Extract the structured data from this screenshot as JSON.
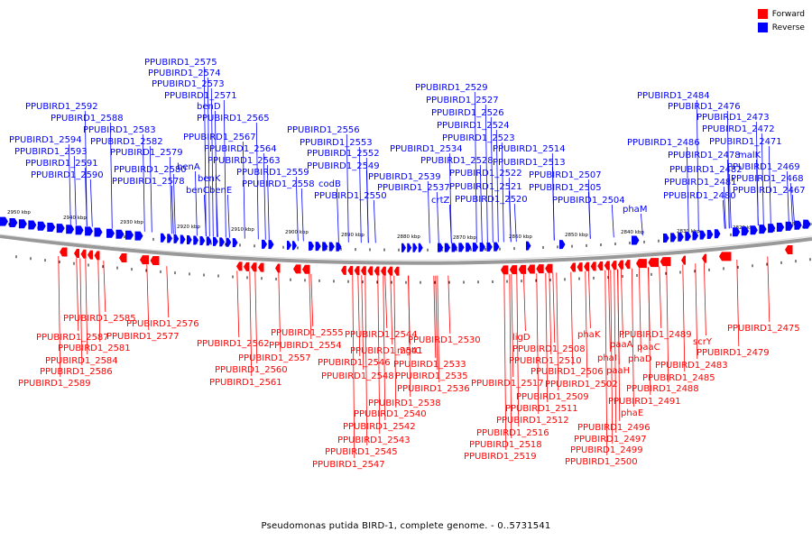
{
  "legend": {
    "items": [
      {
        "label": "Forward",
        "color": "#ff0000"
      },
      {
        "label": "Reverse",
        "color": "#0000ff"
      }
    ]
  },
  "caption": "Pseudomonas putida BIRD-1, complete genome. - 0..5731541",
  "colors": {
    "forward": "#ff0000",
    "reverse": "#0000ff",
    "backbone": "#999999"
  },
  "chart_data": {
    "type": "genome-map",
    "ticks": [
      "2950 kbp",
      "2940 kbp",
      "2930 kbp",
      "2920 kbp",
      "2910 kbp",
      "2900 kbp",
      "2890 kbp",
      "2880 kbp",
      "2870 kbp",
      "2860 kbp",
      "2850 kbp",
      "2840 kbp",
      "2830 kbp",
      "2820 kbp",
      "2810 kbp"
    ],
    "reverse_labels": [
      "PPUBIRD1_2592",
      "PPUBIRD1_2588",
      "PPUBIRD1_2594",
      "PPUBIRD1_2593",
      "PPUBIRD1_2591",
      "PPUBIRD1_2590",
      "PPUBIRD1_2583",
      "PPUBIRD1_2582",
      "PPUBIRD1_2579",
      "PPUBIRD1_2580",
      "PPUBIRD1_2578",
      "PPUBIRD1_2575",
      "PPUBIRD1_2574",
      "PPUBIRD1_2573",
      "PPUBIRD1_2571",
      "benD",
      "PPUBIRD1_2565",
      "PPUBIRD1_2567",
      "PPUBIRD1_2564",
      "PPUBIRD1_2563",
      "benA",
      "benK",
      "benC",
      "benE",
      "PPUBIRD1_2559",
      "PPUBIRD1_2558",
      "PPUBIRD1_2556",
      "PPUBIRD1_2553",
      "PPUBIRD1_2552",
      "PPUBIRD1_2549",
      "codB",
      "PPUBIRD1_2550",
      "PPUBIRD1_2529",
      "PPUBIRD1_2527",
      "PPUBIRD1_2526",
      "PPUBIRD1_2524",
      "PPUBIRD1_2523",
      "PPUBIRD1_2534",
      "PPUBIRD1_2514",
      "PPUBIRD1_2528",
      "PPUBIRD1_2513",
      "PPUBIRD1_2539",
      "PPUBIRD1_2522",
      "PPUBIRD1_2507",
      "PPUBIRD1_2537",
      "PPUBIRD1_2521",
      "PPUBIRD1_2505",
      "crtZ",
      "PPUBIRD1_2520",
      "PPUBIRD1_2504",
      "PPUBIRD1_2484",
      "PPUBIRD1_2476",
      "PPUBIRD1_2473",
      "PPUBIRD1_2472",
      "PPUBIRD1_2486",
      "PPUBIRD1_2471",
      "PPUBIRD1_2478",
      "malK",
      "PPUBIRD1_2482",
      "PPUBIRD1_2469",
      "PPUBIRD1_2481",
      "PPUBIRD1_2468",
      "PPUBIRD1_2480",
      "PPUBIRD1_2467",
      "phaM"
    ],
    "forward_labels": [
      "PPUBIRD1_2585",
      "PPUBIRD1_2576",
      "PPUBIRD1_2587",
      "PPUBIRD1_2577",
      "PPUBIRD1_2581",
      "PPUBIRD1_2584",
      "PPUBIRD1_2586",
      "PPUBIRD1_2589",
      "PPUBIRD1_2555",
      "PPUBIRD1_2562",
      "PPUBIRD1_2554",
      "PPUBIRD1_2557",
      "PPUBIRD1_2560",
      "PPUBIRD1_2561",
      "PPUBIRD1_2544",
      "PPUBIRD1_2541",
      "mgtC",
      "PPUBIRD1_2530",
      "PPUBIRD1_2546",
      "PPUBIRD1_2533",
      "PPUBIRD1_2548",
      "PPUBIRD1_2535",
      "PPUBIRD1_2536",
      "PPUBIRD1_2538",
      "PPUBIRD1_2540",
      "PPUBIRD1_2542",
      "PPUBIRD1_2543",
      "PPUBIRD1_2545",
      "PPUBIRD1_2547",
      "ligD",
      "PPUBIRD1_2508",
      "PPUBIRD1_2510",
      "PPUBIRD1_2506",
      "PPUBIRD1_2517",
      "PPUBIRD1_2502",
      "PPUBIRD1_2509",
      "PPUBIRD1_2511",
      "PPUBIRD1_2512",
      "PPUBIRD1_2516",
      "PPUBIRD1_2518",
      "PPUBIRD1_2519",
      "phaK",
      "phaI",
      "paaA",
      "paaC",
      "paaH",
      "phaD",
      "phaE",
      "PPUBIRD1_2496",
      "PPUBIRD1_2497",
      "PPUBIRD1_2499",
      "PPUBIRD1_2500",
      "PPUBIRD1_2489",
      "PPUBIRD1_2483",
      "PPUBIRD1_2485",
      "PPUBIRD1_2488",
      "PPUBIRD1_2491",
      "scrY",
      "PPUBIRD1_2475",
      "PPUBIRD1_2479"
    ]
  }
}
